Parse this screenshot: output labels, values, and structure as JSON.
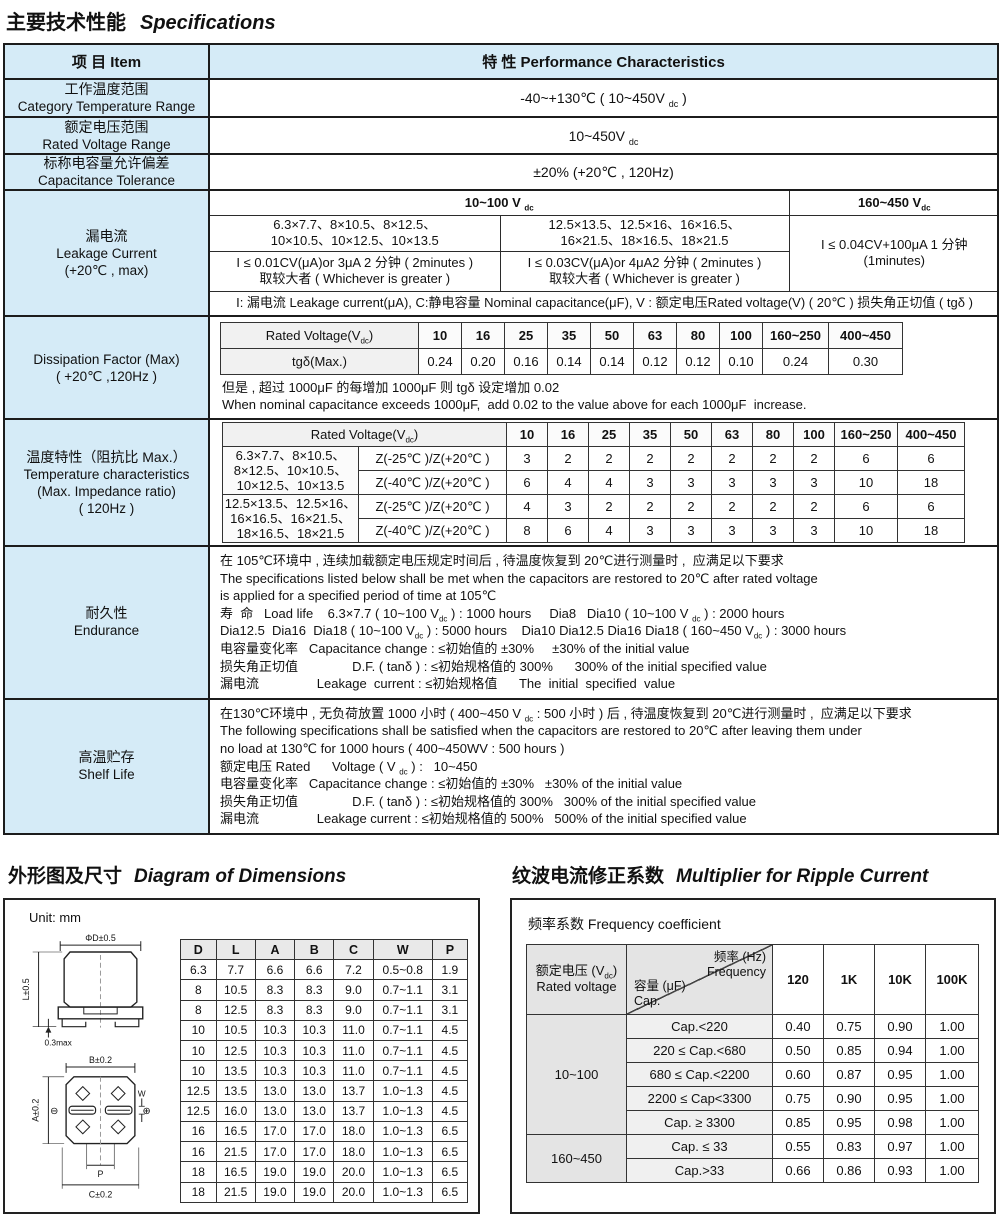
{
  "page": {
    "title_zh": "主要技术性能",
    "title_en": "Specifications"
  },
  "spec": {
    "header": {
      "item": "项 目 Item",
      "perf": "特 性 Performance Characteristics"
    },
    "category_temp": {
      "zh": "工作温度范围",
      "en": "Category Temperature Range",
      "value": "-40~+130℃ ( 10~450V _dc_ )"
    },
    "rated_voltage": {
      "zh": "额定电压范围",
      "en": "Rated Voltage Range",
      "value": "10~450V _dc_"
    },
    "tolerance": {
      "zh": "标称电容量允许偏差",
      "en": "Capacitance Tolerance",
      "value": "±20%    (+20℃ , 120Hz)"
    },
    "leakage": {
      "zh": "漏电流",
      "en": "Leakage Current",
      "en2": "(+20℃ , max)",
      "col_low": "10~100 V _dc_",
      "col_high": "160~450 V_dc_",
      "sizes_small": "6.3×7.7、8×10.5、8×12.5、\n10×10.5、10×12.5、10×13.5",
      "sizes_large": "12.5×13.5、12.5×16、16×16.5、\n16×21.5、18×16.5、18×21.5",
      "formula_small": "I ≤ 0.01CV(μA)or 3μA 2 分钟 ( 2minutes )\n取较大者 ( Whichever is greater )",
      "formula_large": "I ≤ 0.03CV(μA)or 4μA2 分钟 ( 2minutes )\n取较大者 ( Whichever is greater )",
      "high_value": "I ≤ 0.04CV+100μA  1 分钟\n(1minutes)",
      "note": "I: 漏电流 Leakage current(μA), C:静电容量 Nominal capacitance(μF), V : 额定电压Rated voltage(V) ( 20℃ ) 损失角正切值 ( tgδ )"
    },
    "dissipation": {
      "l1": "Dissipation Factor (Max)",
      "l2": "( +20℃ ,120Hz )",
      "header_label": "Rated Voltage(V_dc_)",
      "voltages": [
        "10",
        "16",
        "25",
        "35",
        "50",
        "63",
        "80",
        "100",
        "160~250",
        "400~450"
      ],
      "tg_label": "tgδ(Max.)",
      "values": [
        "0.24",
        "0.20",
        "0.16",
        "0.14",
        "0.14",
        "0.12",
        "0.12",
        "0.10",
        "0.24",
        "0.30"
      ],
      "note_zh": "但是 , 超过 1000μF 的每增加 1000μF 则 tgδ 设定增加 0.02",
      "note_en": "When nominal capacitance exceeds 1000μF,  add 0.02 to the value above for each 1000μF  increase."
    },
    "temperature": {
      "zh": "温度特性（阻抗比 Max.）",
      "en": "Temperature characteristics",
      "en2": "(Max. Impedance ratio)",
      "en3": "( 120Hz )",
      "header_label": "Rated Voltage(V_dc_)",
      "voltages": [
        "10",
        "16",
        "25",
        "35",
        "50",
        "63",
        "80",
        "100",
        "160~250",
        "400~450"
      ],
      "groups": [
        {
          "sizes": "6.3×7.7、8×10.5、\n8×12.5、10×10.5、\n10×12.5、10×13.5",
          "rows": [
            {
              "label": "Z(-25℃ )/Z(+20℃ )",
              "values": [
                "3",
                "2",
                "2",
                "2",
                "2",
                "2",
                "2",
                "2",
                "6",
                "6"
              ]
            },
            {
              "label": "Z(-40℃ )/Z(+20℃ )",
              "values": [
                "6",
                "4",
                "4",
                "3",
                "3",
                "3",
                "3",
                "3",
                "10",
                "18"
              ]
            }
          ]
        },
        {
          "sizes": "12.5×13.5、12.5×16、\n16×16.5、16×21.5、\n18×16.5、18×21.5",
          "rows": [
            {
              "label": "Z(-25℃ )/Z(+20℃ )",
              "values": [
                "4",
                "3",
                "2",
                "2",
                "2",
                "2",
                "2",
                "2",
                "6",
                "6"
              ]
            },
            {
              "label": "Z(-40℃ )/Z(+20℃ )",
              "values": [
                "8",
                "6",
                "4",
                "3",
                "3",
                "3",
                "3",
                "3",
                "10",
                "18"
              ]
            }
          ]
        }
      ]
    },
    "endurance": {
      "zh": "耐久性",
      "en": "Endurance",
      "lines": [
        "在 105℃环境中 , 连续加载额定电压规定时间后 , 待温度恢复到 20℃进行测量时 ,  应满足以下要求",
        "The specifications listed below shall be met when the capacitors are restored to 20℃ after rated voltage",
        "is applied for a specified period of time at 105℃",
        "寿  命   Load life    6.3×7.7 ( 10~100 V_dc_ ) : 1000 hours     Dia8   Dia10 ( 10~100 V _dc_ ) : 2000 hours",
        "Dia12.5  Dia16  Dia18 ( 10~100 V_dc_ ) : 5000 hours    Dia10 Dia12.5 Dia16 Dia18 ( 160~450 V_dc_ ) : 3000 hours",
        "电容量变化率   Capacitance change : ≤初始值的 ±30%     ±30% of the initial value",
        "损失角正切值               D.F. ( tanδ ) : ≤初始规格值的 300%      300% of the initial specified value",
        "漏电流                Leakage  current : ≤初始规格值      The  initial  specified  value"
      ]
    },
    "shelf": {
      "zh": "高温贮存",
      "en": "Shelf Life",
      "lines": [
        "在130℃环境中 , 无负荷放置 1000 小时 ( 400~450 V _dc_ : 500 小时 ) 后 , 待温度恢复到 20℃进行测量时 ,  应满足以下要求",
        "The following specifications shall be satisfied when the capacitors are restored to 20℃ after leaving them under",
        "no load at 130℃ for 1000 hours ( 400~450WV : 500 hours )",
        "额定电压 Rated      Voltage ( V _dc_ ) :   10~450",
        "电容量变化率   Capacitance change : ≤初始值的 ±30%   ±30% of the initial value",
        "损失角正切值               D.F. ( tanδ ) : ≤初始规格值的 300%   300% of the initial specified value",
        "漏电流                Leakage current : ≤初始规格值的 500%   500% of the initial specified value"
      ]
    }
  },
  "dimensions": {
    "title_zh": "外形图及尺寸",
    "title_en": "Diagram of Dimensions",
    "unit": "Unit: mm",
    "diagram": {
      "phi_d": "ΦD±0.5",
      "height": "L±0.5",
      "seat": "0.3max",
      "b": "B±0.2",
      "a": "A±0.2",
      "w": "W",
      "p": "P",
      "c": "C±0.2",
      "minus": "⊖",
      "plus": "⊕"
    },
    "table": {
      "headers": [
        "D",
        "L",
        "A",
        "B",
        "C",
        "W",
        "P"
      ],
      "rows": [
        [
          "6.3",
          "7.7",
          "6.6",
          "6.6",
          "7.2",
          "0.5~0.8",
          "1.9"
        ],
        [
          "8",
          "10.5",
          "8.3",
          "8.3",
          "9.0",
          "0.7~1.1",
          "3.1"
        ],
        [
          "8",
          "12.5",
          "8.3",
          "8.3",
          "9.0",
          "0.7~1.1",
          "3.1"
        ],
        [
          "10",
          "10.5",
          "10.3",
          "10.3",
          "11.0",
          "0.7~1.1",
          "4.5"
        ],
        [
          "10",
          "12.5",
          "10.3",
          "10.3",
          "11.0",
          "0.7~1.1",
          "4.5"
        ],
        [
          "10",
          "13.5",
          "10.3",
          "10.3",
          "11.0",
          "0.7~1.1",
          "4.5"
        ],
        [
          "12.5",
          "13.5",
          "13.0",
          "13.0",
          "13.7",
          "1.0~1.3",
          "4.5"
        ],
        [
          "12.5",
          "16.0",
          "13.0",
          "13.0",
          "13.7",
          "1.0~1.3",
          "4.5"
        ],
        [
          "16",
          "16.5",
          "17.0",
          "17.0",
          "18.0",
          "1.0~1.3",
          "6.5"
        ],
        [
          "16",
          "21.5",
          "17.0",
          "17.0",
          "18.0",
          "1.0~1.3",
          "6.5"
        ],
        [
          "18",
          "16.5",
          "19.0",
          "19.0",
          "20.0",
          "1.0~1.3",
          "6.5"
        ],
        [
          "18",
          "21.5",
          "19.0",
          "19.0",
          "20.0",
          "1.0~1.3",
          "6.5"
        ]
      ]
    }
  },
  "ripple": {
    "title_zh": "纹波电流修正系数",
    "title_en": "Multiplier for Ripple Current",
    "subtitle": "频率系数 Frequency coefficient",
    "table": {
      "corner_voltage": "额定电压 (V_dc_)\nRated voltage",
      "diag_top": "频率 (Hz)\nFrequency",
      "diag_bottom": "容量 (μF)\nCap.",
      "freqs": [
        "120",
        "1K",
        "10K",
        "100K"
      ],
      "groups": [
        {
          "voltage": "10~100",
          "rows": [
            {
              "cap": "Cap.<220",
              "values": [
                "0.40",
                "0.75",
                "0.90",
                "1.00"
              ]
            },
            {
              "cap": "220 ≤ Cap.<680",
              "values": [
                "0.50",
                "0.85",
                "0.94",
                "1.00"
              ]
            },
            {
              "cap": "680 ≤ Cap.<2200",
              "values": [
                "0.60",
                "0.87",
                "0.95",
                "1.00"
              ]
            },
            {
              "cap": "2200 ≤ Cap<3300",
              "values": [
                "0.75",
                "0.90",
                "0.95",
                "1.00"
              ]
            },
            {
              "cap": "Cap. ≥ 3300",
              "values": [
                "0.85",
                "0.95",
                "0.98",
                "1.00"
              ]
            }
          ]
        },
        {
          "voltage": "160~450",
          "rows": [
            {
              "cap": "Cap. ≤ 33",
              "values": [
                "0.55",
                "0.83",
                "0.97",
                "1.00"
              ]
            },
            {
              "cap": "Cap.>33",
              "values": [
                "0.66",
                "0.86",
                "0.93",
                "1.00"
              ]
            }
          ]
        }
      ]
    }
  }
}
